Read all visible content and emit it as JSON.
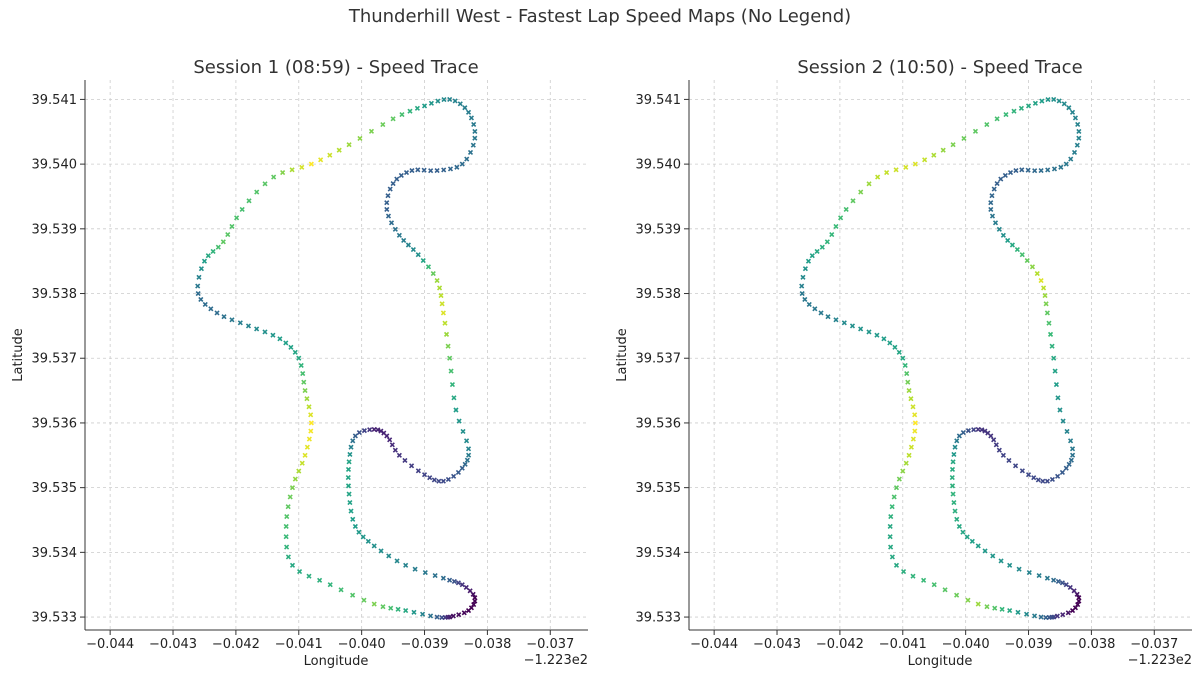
{
  "suptitle": "Thunderhill West - Fastest Lap Speed Maps (No Legend)",
  "colors": {
    "colormap": "viridis",
    "grid": "#cccccc",
    "axis": "#333333"
  },
  "chart_data": [
    {
      "type": "scatter",
      "title": "Session 1 (08:59) - Speed Trace",
      "xlabel": "Longitude",
      "ylabel": "Latitude",
      "x_offset_label": "−1.223e2",
      "xlim": [
        -0.0444,
        -0.0364
      ],
      "ylim": [
        39.5328,
        39.5413
      ],
      "xticks": [
        -0.044,
        -0.043,
        -0.042,
        -0.041,
        -0.04,
        -0.039,
        -0.038,
        -0.037
      ],
      "xtick_labels": [
        "−0.044",
        "−0.043",
        "−0.042",
        "−0.041",
        "−0.040",
        "−0.039",
        "−0.038",
        "−0.037"
      ],
      "yticks": [
        39.533,
        39.534,
        39.535,
        39.536,
        39.537,
        39.538,
        39.539,
        39.54,
        39.541
      ],
      "ytick_labels": [
        "39.533",
        "39.534",
        "39.535",
        "39.536",
        "39.537",
        "39.538",
        "39.539",
        "39.540",
        "39.541"
      ],
      "grid": true,
      "marker": "x",
      "path": [
        [
          -0.0386,
          39.533,
          0.05
        ],
        [
          -0.0383,
          39.5331,
          0.0
        ],
        [
          -0.0382,
          39.5333,
          0.0
        ],
        [
          -0.0384,
          39.5335,
          0.15
        ],
        [
          -0.0387,
          39.5336,
          0.35
        ],
        [
          -0.0393,
          39.5338,
          0.45
        ],
        [
          -0.0398,
          39.5341,
          0.5
        ],
        [
          -0.0401,
          39.5344,
          0.55
        ],
        [
          -0.0402,
          39.5349,
          0.58
        ],
        [
          -0.0402,
          39.5354,
          0.58
        ],
        [
          -0.0401,
          39.5358,
          0.3
        ],
        [
          -0.0398,
          39.5359,
          0.1
        ],
        [
          -0.0396,
          39.5358,
          0.1
        ],
        [
          -0.0394,
          39.5355,
          0.15
        ],
        [
          -0.039,
          39.5352,
          0.2
        ],
        [
          -0.0387,
          39.5351,
          0.22
        ],
        [
          -0.0384,
          39.5353,
          0.3
        ],
        [
          -0.0383,
          39.5356,
          0.45
        ],
        [
          -0.0385,
          39.5362,
          0.55
        ],
        [
          -0.0386,
          39.537,
          0.75
        ],
        [
          -0.0387,
          39.5377,
          0.95
        ],
        [
          -0.0388,
          39.5382,
          0.85
        ],
        [
          -0.0391,
          39.5386,
          0.5
        ],
        [
          -0.0394,
          39.5389,
          0.4
        ],
        [
          -0.0396,
          39.5393,
          0.3
        ],
        [
          -0.0395,
          39.5397,
          0.3
        ],
        [
          -0.0392,
          39.5399,
          0.3
        ],
        [
          -0.0388,
          39.5399,
          0.3
        ],
        [
          -0.0384,
          39.54,
          0.35
        ],
        [
          -0.0382,
          39.5404,
          0.4
        ],
        [
          -0.0383,
          39.5408,
          0.42
        ],
        [
          -0.0386,
          39.541,
          0.45
        ],
        [
          -0.039,
          39.5409,
          0.55
        ],
        [
          -0.0395,
          39.5407,
          0.75
        ],
        [
          -0.0402,
          39.5403,
          0.85
        ],
        [
          -0.0408,
          39.54,
          1.0
        ],
        [
          -0.0414,
          39.5398,
          0.75
        ],
        [
          -0.0419,
          39.5393,
          0.7
        ],
        [
          -0.0422,
          39.5388,
          0.75
        ],
        [
          -0.0425,
          39.5385,
          0.55
        ],
        [
          -0.0426,
          39.538,
          0.35
        ],
        [
          -0.0423,
          39.5377,
          0.35
        ],
        [
          -0.0418,
          39.5375,
          0.45
        ],
        [
          -0.0413,
          39.5373,
          0.55
        ],
        [
          -0.041,
          39.537,
          0.6
        ],
        [
          -0.0409,
          39.5365,
          0.8
        ],
        [
          -0.0408,
          39.536,
          1.0
        ],
        [
          -0.0409,
          39.5355,
          0.95
        ],
        [
          -0.0411,
          39.535,
          0.8
        ],
        [
          -0.0412,
          39.5344,
          0.7
        ],
        [
          -0.0411,
          39.5338,
          0.6
        ],
        [
          -0.0405,
          39.5335,
          0.65
        ],
        [
          -0.0398,
          39.5332,
          0.8
        ],
        [
          -0.0393,
          39.5331,
          0.6
        ],
        [
          -0.0388,
          39.533,
          0.3
        ],
        [
          -0.0386,
          39.533,
          0.05
        ]
      ]
    },
    {
      "type": "scatter",
      "title": "Session 2 (10:50) - Speed Trace",
      "xlabel": "Longitude",
      "ylabel": "Latitude",
      "x_offset_label": "−1.223e2",
      "xlim": [
        -0.0444,
        -0.0364
      ],
      "ylim": [
        39.5328,
        39.5413
      ],
      "xticks": [
        -0.044,
        -0.043,
        -0.042,
        -0.041,
        -0.04,
        -0.039,
        -0.038,
        -0.037
      ],
      "xtick_labels": [
        "−0.044",
        "−0.043",
        "−0.042",
        "−0.041",
        "−0.040",
        "−0.039",
        "−0.038",
        "−0.037"
      ],
      "yticks": [
        39.533,
        39.534,
        39.535,
        39.536,
        39.537,
        39.538,
        39.539,
        39.54,
        39.541
      ],
      "ytick_labels": [
        "39.533",
        "39.534",
        "39.535",
        "39.536",
        "39.537",
        "39.538",
        "39.539",
        "39.540",
        "39.541"
      ],
      "grid": true,
      "marker": "x",
      "path": [
        [
          -0.0386,
          39.533,
          0.2
        ],
        [
          -0.0383,
          39.5331,
          0.0
        ],
        [
          -0.0382,
          39.5333,
          0.0
        ],
        [
          -0.0384,
          39.5335,
          0.2
        ],
        [
          -0.0387,
          39.5336,
          0.4
        ],
        [
          -0.0393,
          39.5338,
          0.5
        ],
        [
          -0.0398,
          39.5341,
          0.55
        ],
        [
          -0.0401,
          39.5344,
          0.6
        ],
        [
          -0.0402,
          39.5349,
          0.65
        ],
        [
          -0.0402,
          39.5354,
          0.6
        ],
        [
          -0.0401,
          39.5358,
          0.35
        ],
        [
          -0.0398,
          39.5359,
          0.15
        ],
        [
          -0.0396,
          39.5358,
          0.15
        ],
        [
          -0.0394,
          39.5355,
          0.2
        ],
        [
          -0.039,
          39.5352,
          0.22
        ],
        [
          -0.0387,
          39.5351,
          0.22
        ],
        [
          -0.0384,
          39.5353,
          0.3
        ],
        [
          -0.0383,
          39.5356,
          0.4
        ],
        [
          -0.0385,
          39.5362,
          0.5
        ],
        [
          -0.0386,
          39.537,
          0.6
        ],
        [
          -0.0387,
          39.5377,
          0.75
        ],
        [
          -0.0388,
          39.5382,
          0.95
        ],
        [
          -0.0391,
          39.5386,
          0.7
        ],
        [
          -0.0394,
          39.5389,
          0.5
        ],
        [
          -0.0396,
          39.5393,
          0.35
        ],
        [
          -0.0395,
          39.5397,
          0.3
        ],
        [
          -0.0392,
          39.5399,
          0.3
        ],
        [
          -0.0388,
          39.5399,
          0.35
        ],
        [
          -0.0384,
          39.54,
          0.4
        ],
        [
          -0.0382,
          39.5404,
          0.45
        ],
        [
          -0.0383,
          39.5408,
          0.45
        ],
        [
          -0.0386,
          39.541,
          0.5
        ],
        [
          -0.039,
          39.5409,
          0.6
        ],
        [
          -0.0395,
          39.5407,
          0.7
        ],
        [
          -0.0402,
          39.5403,
          0.8
        ],
        [
          -0.0408,
          39.54,
          0.95
        ],
        [
          -0.0414,
          39.5398,
          0.9
        ],
        [
          -0.0419,
          39.5393,
          0.7
        ],
        [
          -0.0422,
          39.5388,
          0.65
        ],
        [
          -0.0425,
          39.5385,
          0.55
        ],
        [
          -0.0426,
          39.538,
          0.4
        ],
        [
          -0.0423,
          39.5377,
          0.4
        ],
        [
          -0.0418,
          39.5375,
          0.5
        ],
        [
          -0.0413,
          39.5373,
          0.55
        ],
        [
          -0.041,
          39.537,
          0.6
        ],
        [
          -0.0409,
          39.5365,
          0.85
        ],
        [
          -0.0408,
          39.536,
          1.0
        ],
        [
          -0.0409,
          39.5355,
          0.9
        ],
        [
          -0.0411,
          39.535,
          0.75
        ],
        [
          -0.0412,
          39.5344,
          0.6
        ],
        [
          -0.0411,
          39.5338,
          0.6
        ],
        [
          -0.0405,
          39.5335,
          0.7
        ],
        [
          -0.0398,
          39.5332,
          0.85
        ],
        [
          -0.0393,
          39.5331,
          0.6
        ],
        [
          -0.0388,
          39.533,
          0.35
        ],
        [
          -0.0386,
          39.533,
          0.2
        ]
      ]
    }
  ]
}
